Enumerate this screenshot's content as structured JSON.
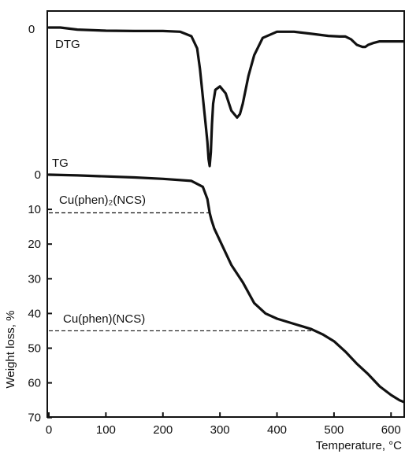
{
  "chart_data": [
    {
      "type": "line",
      "title": "",
      "xlabel": "",
      "ylabel": "",
      "series": [
        {
          "name": "DTG",
          "x": [
            0,
            20,
            50,
            100,
            150,
            200,
            230,
            250,
            260,
            265,
            270,
            275,
            278,
            280,
            282,
            284,
            286,
            288,
            292,
            300,
            310,
            320,
            330,
            335,
            340,
            350,
            360,
            375,
            400,
            430,
            460,
            490,
            510,
            520,
            530,
            540,
            550,
            555,
            560,
            570,
            580,
            600,
            630
          ],
          "y": [
            0,
            0,
            -0.6,
            -0.9,
            -1.0,
            -1.0,
            -1.2,
            -2.5,
            -6,
            -12,
            -20,
            -28,
            -33,
            -38,
            -40,
            -36,
            -28,
            -22,
            -18,
            -17,
            -19,
            -24,
            -26,
            -25,
            -22,
            -14,
            -8,
            -3,
            -1.2,
            -1.2,
            -1.8,
            -2.4,
            -2.6,
            -2.6,
            -3.4,
            -5.0,
            -5.6,
            -5.6,
            -5.0,
            -4.4,
            -4.0,
            -4.0,
            -4.0
          ]
        }
      ]
    },
    {
      "type": "line",
      "title": "",
      "xlabel": "Temperature, °C",
      "ylabel": "Weight loss, %",
      "xlim": [
        0,
        630
      ],
      "ylim": [
        0,
        70
      ],
      "y_inverted": true,
      "x_ticks": [
        "0",
        "100",
        "200",
        "300",
        "400",
        "500",
        "600"
      ],
      "y_ticks": [
        "0",
        "10",
        "20",
        "30",
        "40",
        "50",
        "60",
        "70"
      ],
      "series": [
        {
          "name": "TG",
          "x": [
            0,
            50,
            100,
            150,
            200,
            250,
            270,
            278,
            282,
            285,
            290,
            300,
            320,
            340,
            360,
            380,
            400,
            430,
            460,
            480,
            500,
            520,
            540,
            560,
            580,
            600,
            615,
            630
          ],
          "y": [
            0,
            0.2,
            0.5,
            0.8,
            1.2,
            1.8,
            3.5,
            7,
            11,
            13,
            15.5,
            19,
            26,
            31,
            37,
            40,
            41.5,
            43,
            44.5,
            46,
            48,
            51,
            54.5,
            57.5,
            61,
            63.5,
            65,
            66
          ]
        }
      ],
      "reference_lines": [
        {
          "label": "Cu(phen)₂(NCS)",
          "value": 11
        },
        {
          "label": "Cu(phen)(NCS)",
          "value": 45
        }
      ]
    }
  ],
  "labels": {
    "dtg": "DTG",
    "dtg_zero": "0",
    "tg": "TG",
    "ref1": "Cu(phen)₂(NCS)",
    "ref2": "Cu(phen)(NCS)",
    "xlabel": "Temperature, °C",
    "ylabel": "Weight loss, %"
  }
}
